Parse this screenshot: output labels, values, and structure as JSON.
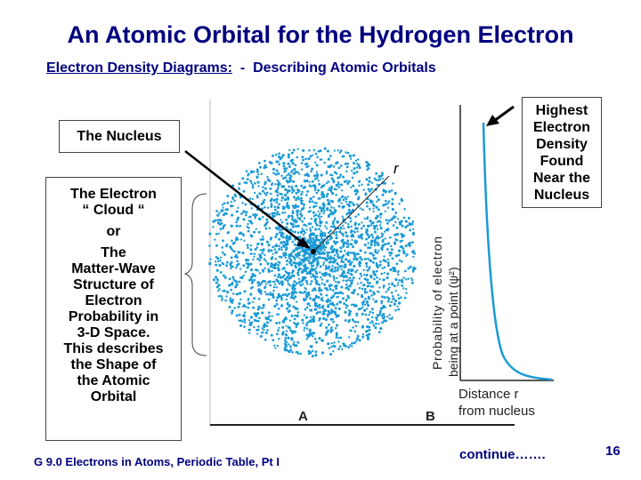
{
  "title": "An Atomic Orbital for the Hydrogen Electron",
  "subtitle": {
    "underlined": "Electron Density Diagrams:",
    "rest": "  -  Describing Atomic Orbitals"
  },
  "nucleus_label": "The Nucleus",
  "cloud_label": {
    "line1": "The Electron",
    "line2": "“ Cloud “",
    "line3": "or",
    "line4": "The",
    "line5": "Matter-Wave",
    "line6": "Structure of",
    "line7": "Electron",
    "line8": "Probability in",
    "line9": "3-D Space.",
    "line10": "This describes",
    "line11": "the Shape of",
    "line12": "the Atomic",
    "line13": "Orbital"
  },
  "density_label": {
    "line1": "Highest",
    "line2": "Electron",
    "line3": "Density",
    "line4": "Found",
    "line5": "Near the",
    "line6": "Nucleus"
  },
  "figure": {
    "radius_label": "r",
    "panel_a": "A",
    "panel_b": "B",
    "y_axis_line1": "Probability of electron",
    "y_axis_line2": "being at a point (ψ²)",
    "x_axis_line1": "Distance r",
    "x_axis_line2": "from nucleus"
  },
  "colors": {
    "title": "#000080",
    "cloud": "#1a9ad6",
    "curve": "#1a9ad6"
  },
  "footer": "G 9.0 Electrons in Atoms, Periodic Table, Pt I",
  "continue": "continue…….",
  "page_number": "16"
}
